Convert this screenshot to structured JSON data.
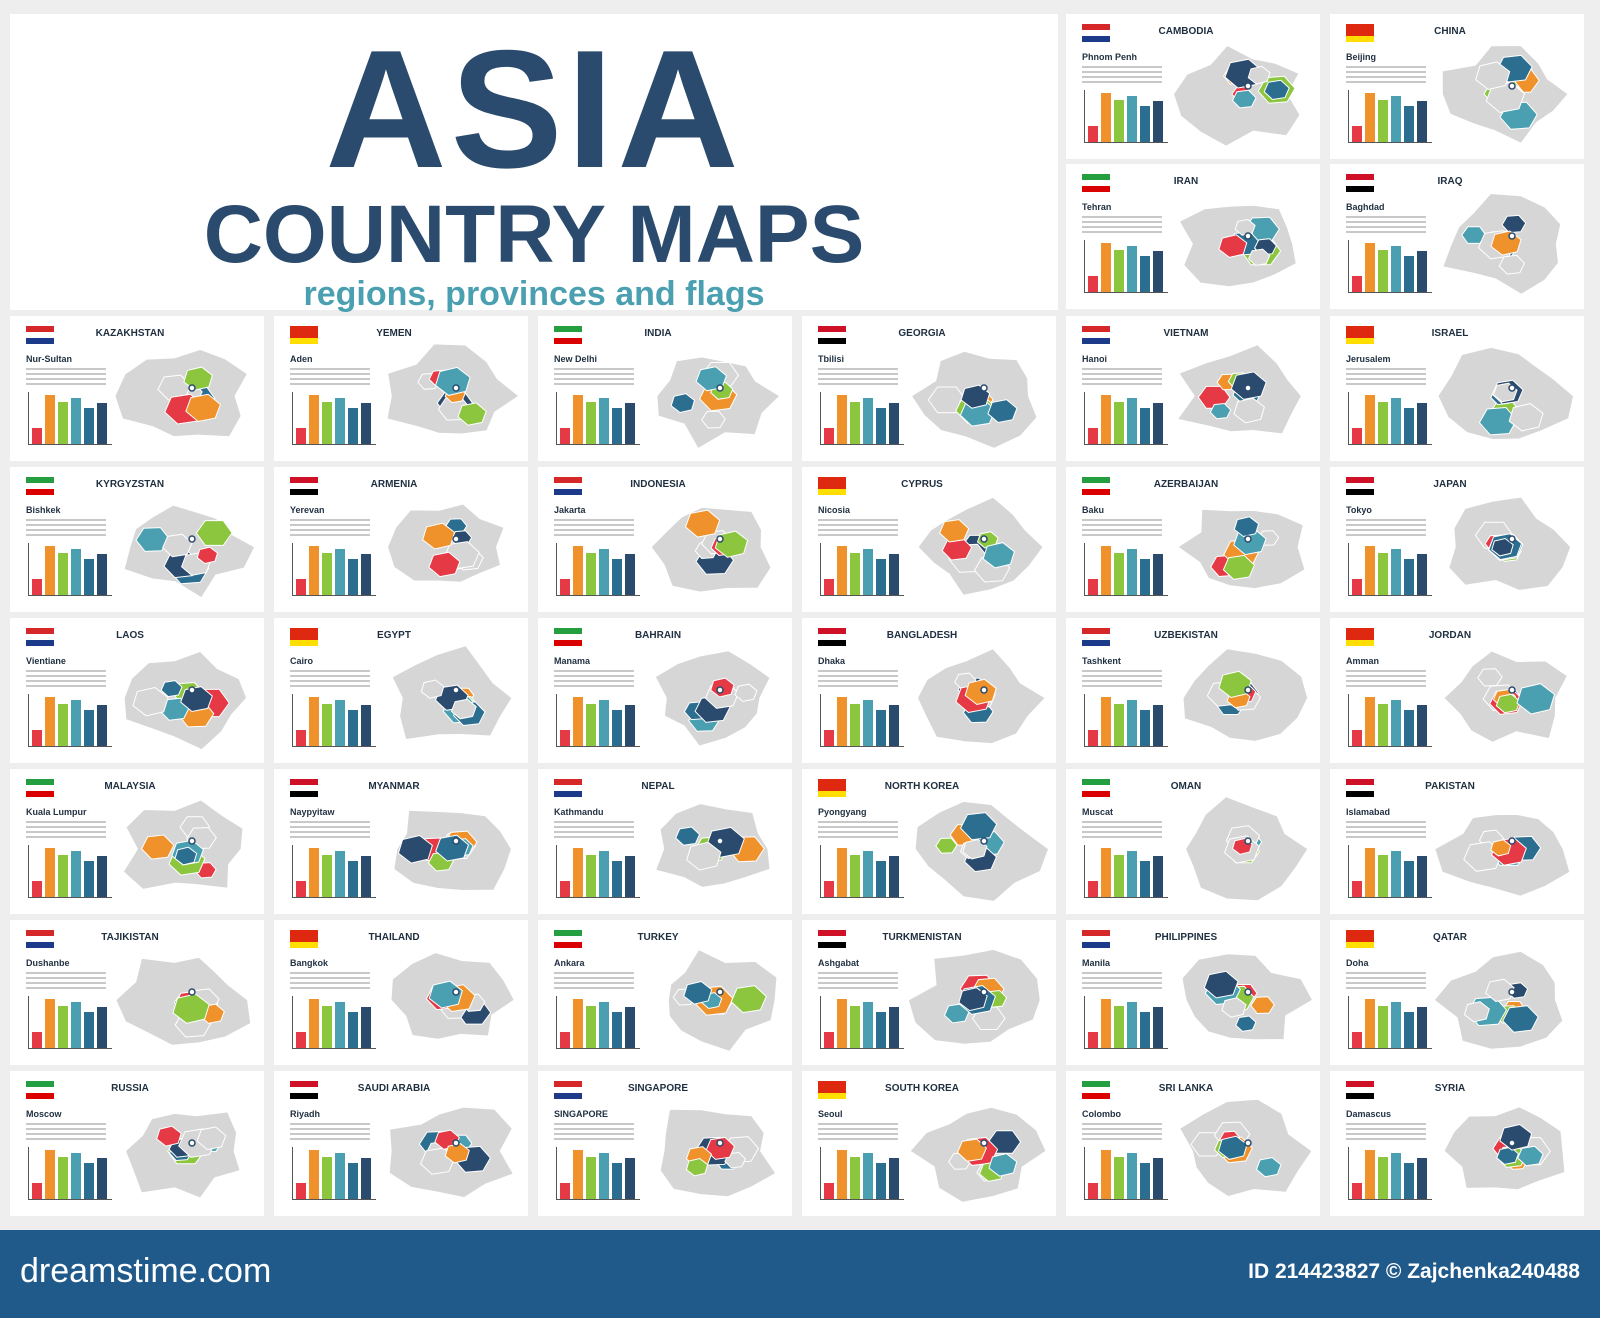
{
  "header": {
    "title": "ASIA",
    "subtitle": "COUNTRY MAPS",
    "tagline": "regions, provinces and flags"
  },
  "cards": [
    {
      "country": "CAMBODIA",
      "capital": "Phnom Penh"
    },
    {
      "country": "CHINA",
      "capital": "Beijing"
    },
    {
      "country": "IRAN",
      "capital": "Tehran"
    },
    {
      "country": "IRAQ",
      "capital": "Baghdad"
    },
    {
      "country": "KAZAKHSTAN",
      "capital": "Nur-Sultan"
    },
    {
      "country": "YEMEN",
      "capital": "Aden"
    },
    {
      "country": "INDIA",
      "capital": "New Delhi"
    },
    {
      "country": "GEORGIA",
      "capital": "Tbilisi"
    },
    {
      "country": "VIETNAM",
      "capital": "Hanoi"
    },
    {
      "country": "ISRAEL",
      "capital": "Jerusalem"
    },
    {
      "country": "KYRGYZSTAN",
      "capital": "Bishkek"
    },
    {
      "country": "ARMENIA",
      "capital": "Yerevan"
    },
    {
      "country": "INDONESIA",
      "capital": "Jakarta"
    },
    {
      "country": "CYPRUS",
      "capital": "Nicosia"
    },
    {
      "country": "AZERBAIJAN",
      "capital": "Baku"
    },
    {
      "country": "JAPAN",
      "capital": "Tokyo"
    },
    {
      "country": "LAOS",
      "capital": "Vientiane"
    },
    {
      "country": "EGYPT",
      "capital": "Cairo"
    },
    {
      "country": "BAHRAIN",
      "capital": "Manama"
    },
    {
      "country": "BANGLADESH",
      "capital": "Dhaka"
    },
    {
      "country": "UZBEKISTAN",
      "capital": "Tashkent"
    },
    {
      "country": "JORDAN",
      "capital": "Amman"
    },
    {
      "country": "MALAYSIA",
      "capital": "Kuala Lumpur"
    },
    {
      "country": "MYANMAR",
      "capital": "Naypyitaw"
    },
    {
      "country": "NEPAL",
      "capital": "Kathmandu"
    },
    {
      "country": "NORTH KOREA",
      "capital": "Pyongyang"
    },
    {
      "country": "OMAN",
      "capital": "Muscat"
    },
    {
      "country": "PAKISTAN",
      "capital": "Islamabad"
    },
    {
      "country": "TAJIKISTAN",
      "capital": "Dushanbe"
    },
    {
      "country": "THAILAND",
      "capital": "Bangkok"
    },
    {
      "country": "TURKEY",
      "capital": "Ankara"
    },
    {
      "country": "TURKMENISTAN",
      "capital": "Ashgabat"
    },
    {
      "country": "PHILIPPINES",
      "capital": "Manila"
    },
    {
      "country": "QATAR",
      "capital": "Doha"
    },
    {
      "country": "RUSSIA",
      "capital": "Moscow"
    },
    {
      "country": "SAUDI ARABIA",
      "capital": "Riyadh"
    },
    {
      "country": "SINGAPORE",
      "capital": "SINGAPORE"
    },
    {
      "country": "SOUTH KOREA",
      "capital": "Seoul"
    },
    {
      "country": "SRI LANKA",
      "capital": "Colombo"
    },
    {
      "country": "SYRIA",
      "capital": "Damascus"
    }
  ],
  "footer": {
    "site": "dreamstime.com",
    "credit": "ID 214423827 © Zajchenka240488"
  }
}
